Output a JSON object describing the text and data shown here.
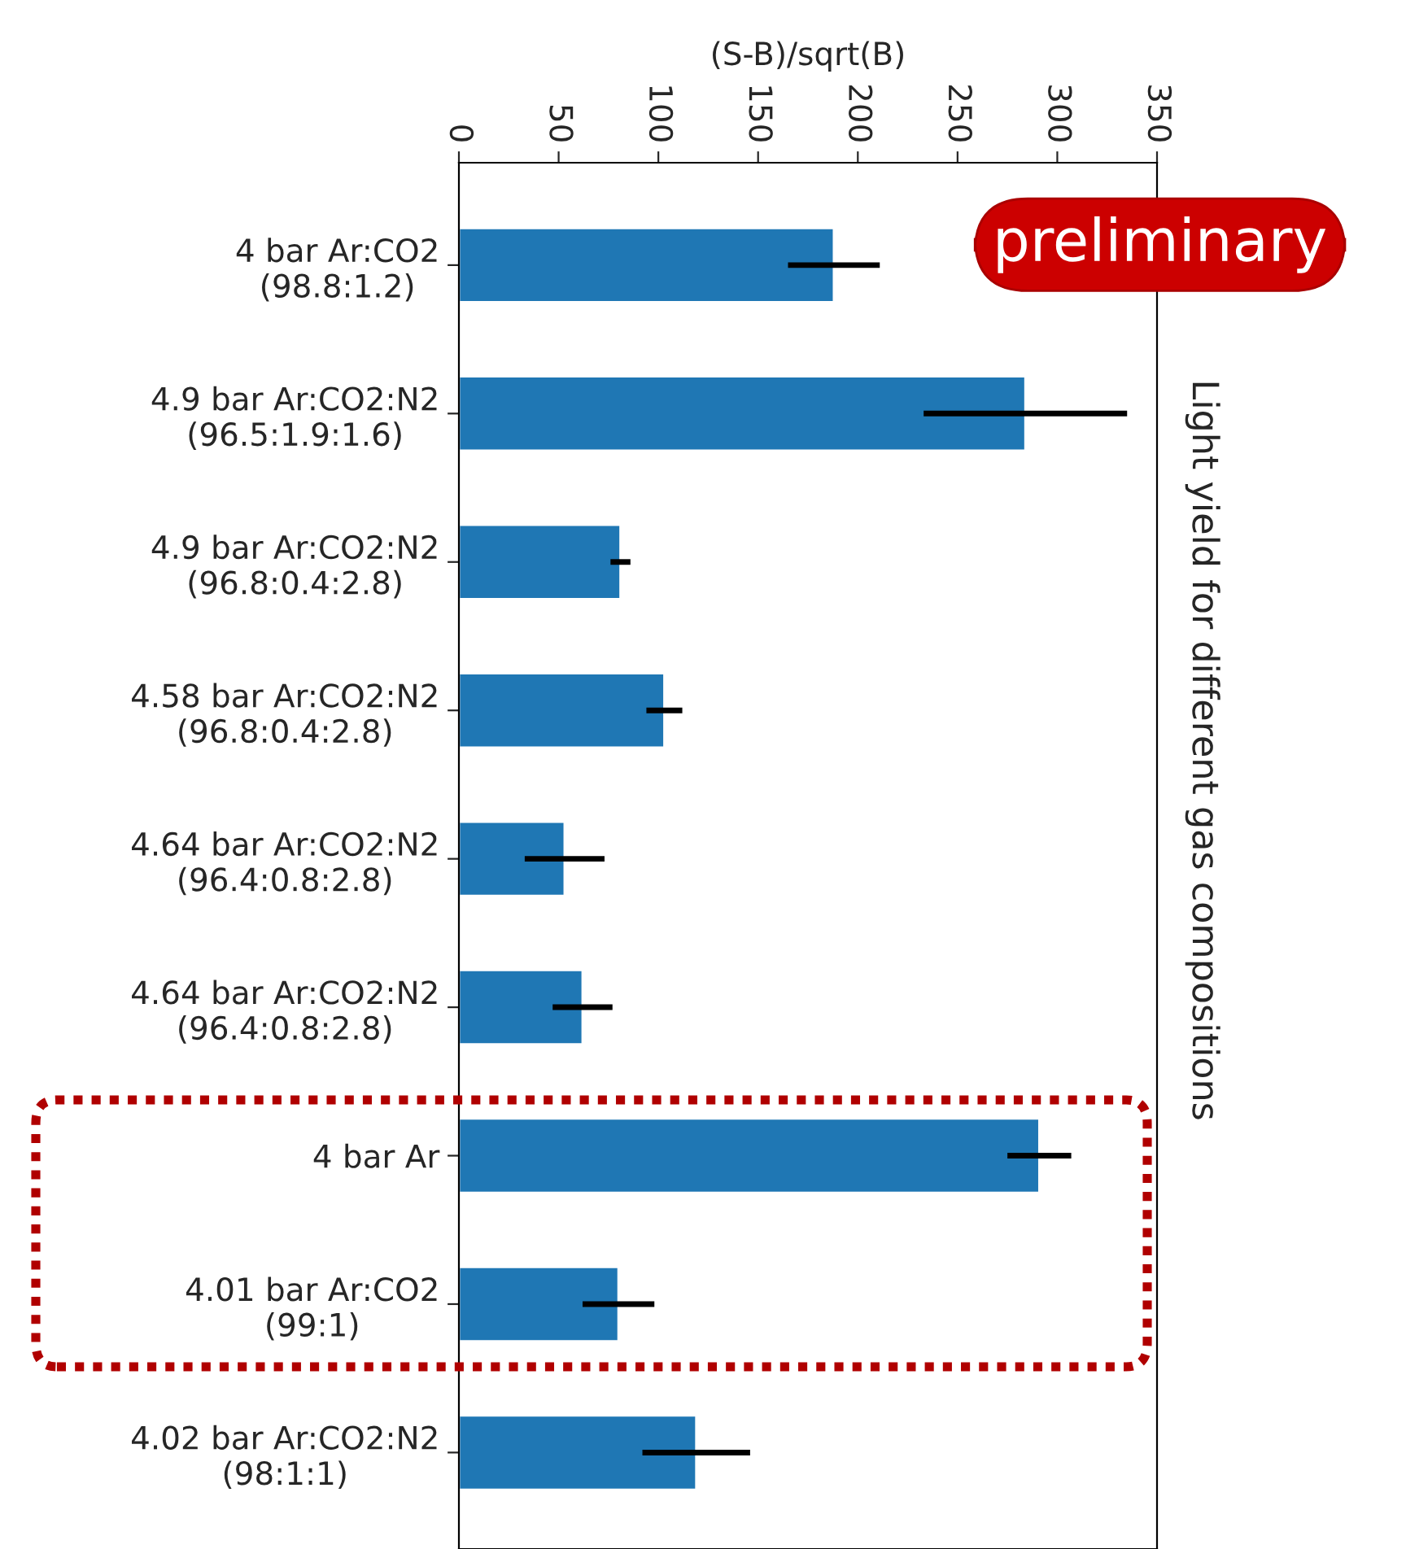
{
  "chart_data": {
    "type": "bar",
    "orientation": "horizontal",
    "title": "Light yield for different gas compositions",
    "xlabel": "(S-B)/sqrt(B)",
    "categories": [
      "4 bar Ar:CO2\n(98.8:1.2)",
      "4.9 bar Ar:CO2:N2\n(96.5:1.9:1.6)",
      "4.9 bar Ar:CO2:N2\n(96.8:0.4:2.8)",
      "4.58 bar Ar:CO2:N2\n(96.8:0.4:2.8)",
      "4.64 bar Ar:CO2:N2\n(96.4:0.8:2.8)",
      "4.64 bar Ar:CO2:N2\n(96.4:0.8:2.8)",
      "4 bar Ar",
      "4.01 bar Ar:CO2\n(99:1)",
      "4.02 bar Ar:CO2:N2\n(98:1:1)"
    ],
    "values": [
      188,
      284,
      81,
      103,
      53,
      62,
      291,
      80,
      119
    ],
    "errors": [
      23,
      51,
      5,
      9,
      20,
      15,
      16,
      18,
      27
    ],
    "color": "#1f77b4",
    "xlim": [
      0,
      350
    ],
    "xticks": [
      0,
      50,
      100,
      150,
      200,
      250,
      300,
      350
    ],
    "grid": false,
    "annotations": [
      "preliminary"
    ]
  }
}
